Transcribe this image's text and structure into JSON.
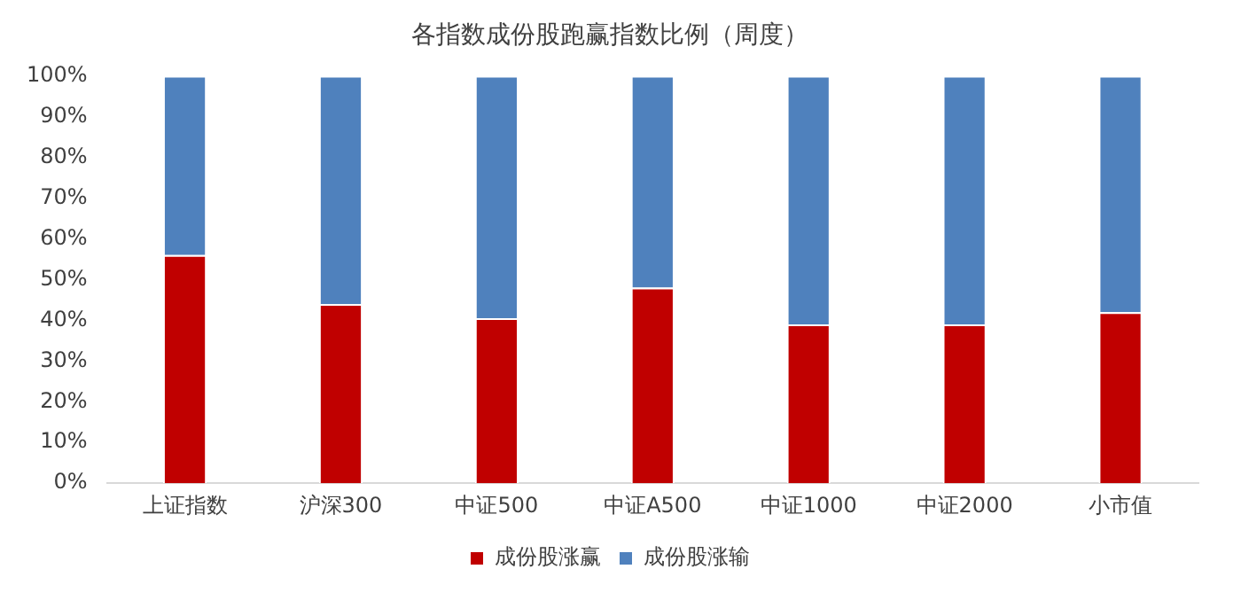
{
  "chart_data": {
    "type": "bar",
    "title": "各指数成份股跑赢指数比例（周度）",
    "stacked": true,
    "categories": [
      "上证指数",
      "沪深300",
      "中证500",
      "中证A500",
      "中证1000",
      "中证2000",
      "小市值"
    ],
    "series": [
      {
        "name": "成份股涨赢",
        "color": "#c00000",
        "values": [
          56,
          44,
          40.5,
          48,
          39,
          39,
          42
        ]
      },
      {
        "name": "成份股涨输",
        "color": "#4f81bd",
        "values": [
          44,
          56,
          59.5,
          52,
          61,
          61,
          58
        ]
      }
    ],
    "ylim": [
      0,
      100
    ],
    "yticks": [
      {
        "value": 0,
        "label": "0%"
      },
      {
        "value": 10,
        "label": "10%"
      },
      {
        "value": 20,
        "label": "20%"
      },
      {
        "value": 30,
        "label": "30%"
      },
      {
        "value": 40,
        "label": "40%"
      },
      {
        "value": 50,
        "label": "50%"
      },
      {
        "value": 60,
        "label": "60%"
      },
      {
        "value": 70,
        "label": "70%"
      },
      {
        "value": 80,
        "label": "80%"
      },
      {
        "value": 90,
        "label": "90%"
      },
      {
        "value": 100,
        "label": "100%"
      }
    ],
    "grid": false,
    "legend": "bottom"
  }
}
